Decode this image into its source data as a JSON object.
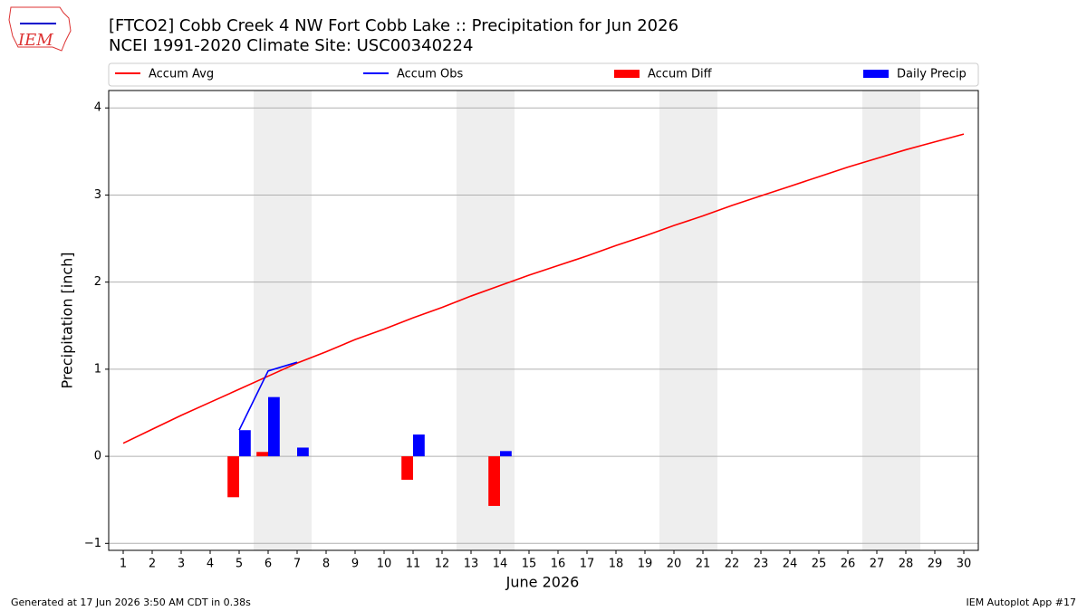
{
  "chart_data": {
    "type": "combo",
    "logo": "IEM",
    "title": "[FTCO2] Cobb Creek 4 NW Fort Cobb Lake :: Precipitation for Jun 2026",
    "subtitle": "NCEI 1991-2020 Climate Site: USC00340224",
    "xlabel": "June 2026",
    "ylabel": "Precipitation [inch]",
    "x": [
      1,
      2,
      3,
      4,
      5,
      6,
      7,
      8,
      9,
      10,
      11,
      12,
      13,
      14,
      15,
      16,
      17,
      18,
      19,
      20,
      21,
      22,
      23,
      24,
      25,
      26,
      27,
      28,
      29,
      30
    ],
    "xlim": [
      0.5,
      30.5
    ],
    "xticks": [
      1,
      2,
      3,
      4,
      5,
      6,
      7,
      8,
      9,
      10,
      11,
      12,
      13,
      14,
      15,
      16,
      17,
      18,
      19,
      20,
      21,
      22,
      23,
      24,
      25,
      26,
      27,
      28,
      29,
      30
    ],
    "ylim": [
      -1.08,
      4.2
    ],
    "yticks": [
      {
        "value": -1,
        "label": "−1"
      },
      0,
      1,
      2,
      3,
      4
    ],
    "grid": true,
    "series": [
      {
        "name": "Accum Avg",
        "type": "line",
        "color": "#ff0000",
        "values": [
          0.15,
          0.31,
          0.47,
          0.62,
          0.77,
          0.92,
          1.07,
          1.2,
          1.34,
          1.46,
          1.59,
          1.71,
          1.84,
          1.96,
          2.08,
          2.19,
          2.3,
          2.42,
          2.53,
          2.65,
          2.76,
          2.88,
          2.99,
          3.1,
          3.21,
          3.32,
          3.42,
          3.52,
          3.61,
          3.7
        ]
      },
      {
        "name": "Accum Obs",
        "type": "line",
        "color": "#0000ff",
        "values": [
          null,
          null,
          null,
          null,
          0.3,
          0.98,
          1.08,
          null,
          null,
          null,
          null,
          null,
          null,
          null,
          null,
          null,
          null,
          null,
          null,
          null,
          null,
          null,
          null,
          null,
          null,
          null,
          null,
          null,
          null,
          null
        ]
      },
      {
        "name": "Accum Diff",
        "type": "bar",
        "color": "#ff0000",
        "values": [
          null,
          null,
          null,
          null,
          -0.47,
          0.05,
          null,
          null,
          null,
          null,
          -0.27,
          null,
          null,
          -0.57,
          null,
          null,
          null,
          null,
          null,
          null,
          null,
          null,
          null,
          null,
          null,
          null,
          null,
          null,
          null,
          null
        ]
      },
      {
        "name": "Daily Precip",
        "type": "bar",
        "color": "#0000ff",
        "values": [
          null,
          null,
          null,
          null,
          0.3,
          0.68,
          0.1,
          null,
          null,
          null,
          0.25,
          null,
          null,
          0.06,
          null,
          null,
          null,
          null,
          null,
          null,
          null,
          null,
          null,
          null,
          null,
          null,
          null,
          null,
          null,
          null
        ]
      }
    ],
    "footer_left": "Generated at 17 Jun 2026 3:50 AM CDT in 0.38s",
    "footer_right": "IEM Autoplot App #17"
  }
}
